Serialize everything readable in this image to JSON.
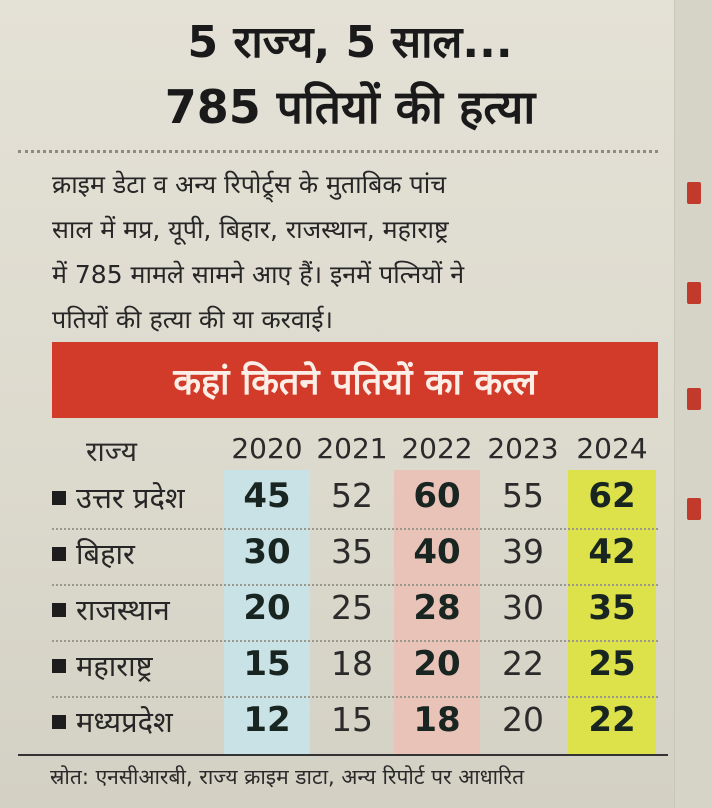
{
  "headline": {
    "line1": "5 राज्य, 5 साल...",
    "line2": "785 पतियों की हत्या"
  },
  "intro": {
    "lines": [
      "क्राइम डेटा व अन्य रिपोर्ट्र्स के मुताबिक पांच",
      "साल में मप्र, यूपी, बिहार, राजस्थान, महाराष्ट्र",
      "में 785 मामले सामने आए हैं। इनमें पत्नियों ने",
      "पतियों की हत्या की या करवाई।"
    ]
  },
  "table": {
    "title": "कहां कितने पतियों का कत्ल",
    "header_state": "राज्य",
    "years": [
      "2020",
      "2021",
      "2022",
      "2023",
      "2024"
    ],
    "rows": [
      {
        "state": "उत्तर प्रदेश",
        "values": [
          "45",
          "52",
          "60",
          "55",
          "62"
        ]
      },
      {
        "state": "बिहार",
        "values": [
          "30",
          "35",
          "40",
          "39",
          "42"
        ]
      },
      {
        "state": "राजस्थान",
        "values": [
          "20",
          "25",
          "28",
          "30",
          "35"
        ]
      },
      {
        "state": "महाराष्ट्र",
        "values": [
          "15",
          "18",
          "20",
          "22",
          "25"
        ]
      },
      {
        "state": "मध्यप्रदेश",
        "values": [
          "12",
          "15",
          "18",
          "20",
          "22"
        ]
      }
    ]
  },
  "source": "स्रोत: एनसीआरबी, राज्य क्राइम डाटा, अन्य रिपोर्ट पर आधारित",
  "colors": {
    "banner": "#d23b2a",
    "col2020": "#c9e2e6",
    "col2022": "#e9c3b8",
    "col2024": "#dde24a"
  }
}
